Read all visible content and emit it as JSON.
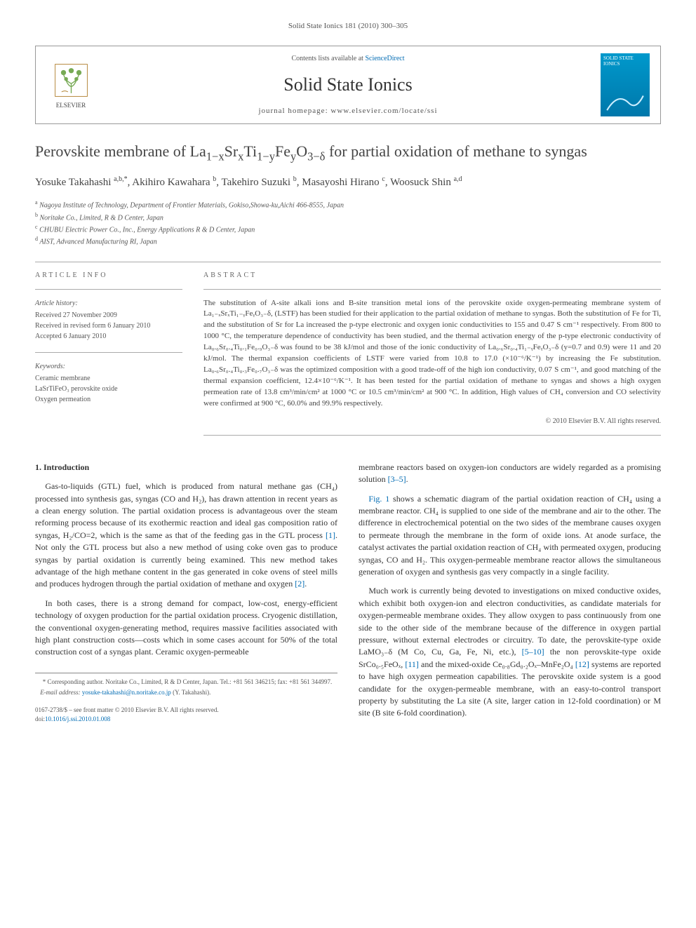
{
  "header": {
    "running": "Solid State Ionics 181 (2010) 300–305"
  },
  "contentsBox": {
    "availText": "Contents lists available at ",
    "availLink": "ScienceDirect",
    "journalName": "Solid State Ionics",
    "homepagePrefix": "journal homepage: ",
    "homepageUrl": "www.elsevier.com/locate/ssi",
    "elsevierLabel": "ELSEVIER",
    "coverTitle": "SOLID STATE IONICS"
  },
  "title": {
    "prefix": "Perovskite membrane of La",
    "sub1": "1−x",
    "mid1": "Sr",
    "sub2": "x",
    "mid2": "Ti",
    "sub3": "1−y",
    "mid3": "Fe",
    "sub4": "y",
    "mid4": "O",
    "sub5": "3−δ",
    "suffix": " for partial oxidation of methane to syngas"
  },
  "authors": [
    {
      "name": "Yosuke Takahashi",
      "sup": "a,b,*"
    },
    {
      "name": "Akihiro Kawahara",
      "sup": "b"
    },
    {
      "name": "Takehiro Suzuki",
      "sup": "b"
    },
    {
      "name": "Masayoshi Hirano",
      "sup": "c"
    },
    {
      "name": "Woosuck Shin",
      "sup": "a,d"
    }
  ],
  "affiliations": [
    {
      "sup": "a",
      "text": "Nagoya Institute of Technology, Department of Frontier Materials, Gokiso,Showa-ku,Aichi 466-8555, Japan"
    },
    {
      "sup": "b",
      "text": "Noritake Co., Limited, R & D Center, Japan"
    },
    {
      "sup": "c",
      "text": "CHUBU Electric Power Co., Inc., Energy Applications R & D Center, Japan"
    },
    {
      "sup": "d",
      "text": "AIST, Advanced Manufacturing RI, Japan"
    }
  ],
  "articleInfo": {
    "heading": "ARTICLE INFO",
    "historyLabel": "Article history:",
    "received": "Received 27 November 2009",
    "revised": "Received in revised form 6 January 2010",
    "accepted": "Accepted 6 January 2010",
    "keywordsLabel": "Keywords:",
    "keywords": [
      "Ceramic membrane",
      "LaSrTiFeO₃ perovskite oxide",
      "Oxygen permeation"
    ]
  },
  "abstract": {
    "heading": "ABSTRACT",
    "text": "The substitution of A-site alkali ions and B-site transition metal ions of the perovskite oxide oxygen-permeating membrane system of La₁₋ₓSrₓTi₁₋ᵧFeᵧO₃₋δ, (LSTF) has been studied for their application to the partial oxidation of methane to syngas. Both the substitution of Fe for Ti, and the substitution of Sr for La increased the p-type electronic and oxygen ionic conductivities to 155 and 0.47 S cm⁻¹ respectively. From 800 to 1000 °C, the temperature dependence of conductivity has been studied, and the thermal activation energy of the p-type electronic conductivity of La₀.₆Sr₀.₄Ti₀.₁Fe₀.₉O₃₋δ was found to be 38 kJ/mol and those of the ionic conductivity of La₀.₆Sr₀.₄Ti₁₋ᵧFeᵧO₃₋δ (y=0.7 and 0.9) were 11 and 20 kJ/mol. The thermal expansion coefficients of LSTF were varied from 10.8 to 17.0 (×10⁻⁶/K⁻¹) by increasing the Fe substitution. La₀.₆Sr₀.₄Ti₀.₃Fe₀.₇O₃₋δ was the optimized composition with a good trade-off of the high ion conductivity, 0.07 S cm⁻¹, and good matching of the thermal expansion coefficient, 12.4×10⁻⁶/K⁻¹. It has been tested for the partial oxidation of methane to syngas and shows a high oxygen permeation rate of 13.8 cm³/min/cm² at 1000 °C or 10.5 cm³/min/cm² at 900 °C. In addition, High values of CH₄ conversion and CO selectivity were confirmed at 900 °C, 60.0% and 99.9% respectively.",
    "copyright": "© 2010 Elsevier B.V. All rights reserved."
  },
  "body": {
    "sectionHeading": "1. Introduction",
    "col1p1": "Gas-to-liquids (GTL) fuel, which is produced from natural methane gas (CH₄) processed into synthesis gas, syngas (CO and H₂), has drawn attention in recent years as a clean energy solution. The partial oxidation process is advantageous over the steam reforming process because of its exothermic reaction and ideal gas composition ratio of syngas, H₂/CO=2, which is the same as that of the feeding gas in the GTL process ",
    "ref1": "[1]",
    "col1p1b": ". Not only the GTL process but also a new method of using coke oven gas to produce syngas by partial oxidation is currently being examined. This new method takes advantage of the high methane content in the gas generated in coke ovens of steel mills and produces hydrogen through the partial oxidation of methane and oxygen ",
    "ref2": "[2]",
    "col1p2": "In both cases, there is a strong demand for compact, low-cost, energy-efficient technology of oxygen production for the partial oxidation process. Cryogenic distillation, the conventional oxygen-generating method, requires massive facilities associated with high plant construction costs—costs which in some cases account for 50% of the total construction cost of a syngas plant. Ceramic oxygen-permeable",
    "col2p1a": "membrane reactors based on oxygen-ion conductors are widely regarded as a promising solution ",
    "ref35": "[3–5]",
    "col2p2a": "",
    "fig1link": "Fig. 1",
    "col2p2b": " shows a schematic diagram of the partial oxidation reaction of CH₄ using a membrane reactor. CH₄ is supplied to one side of the membrane and air to the other. The difference in electrochemical potential on the two sides of the membrane causes oxygen to permeate through the membrane in the form of oxide ions. At anode surface, the catalyst activates the partial oxidation reaction of CH₄ with permeated oxygen, producing syngas, CO and H₂. This oxygen-permeable membrane reactor allows the simultaneous generation of oxygen and synthesis gas very compactly in a single facility.",
    "col2p3a": "Much work is currently being devoted to investigations on mixed conductive oxides, which exhibit both oxygen-ion and electron conductivities, as candidate materials for oxygen-permeable membrane oxides. They allow oxygen to pass continuously from one side to the other side of the membrane because of the difference in oxygen partial pressure, without external electrodes or circuitry. To date, the perovskite-type oxide LaMO₃₋δ (M Co, Cu, Ga, Fe, Ni, etc.), ",
    "ref510": "[5–10]",
    "col2p3b": " the non perovskite-type oxide SrCo₀.₅FeOₓ, ",
    "ref11": "[11]",
    "col2p3c": " and the mixed-oxide Ce₀.₈Gd₀.₂Oₓ–MnFe₂O₄ ",
    "ref12": "[12]",
    "col2p3d": " systems are reported to have high oxygen permeation capabilities. The perovskite oxide system is a good candidate for the oxygen-permeable membrane, with an easy-to-control transport property by substituting the La site (A site, larger cation in 12-fold coordination) or M site (B site 6-fold coordination)."
  },
  "footnote": {
    "corr": "* Corresponding author. Noritake Co., Limited, R & D Center, Japan. Tel.: +81 561 346215; fax: +81 561 344997.",
    "emailLabel": "E-mail address: ",
    "email": "yosuke-takahashi@n.noritake.co.jp",
    "emailSuffix": " (Y. Takahashi)."
  },
  "doi": {
    "line1": "0167-2738/$ – see front matter © 2010 Elsevier B.V. All rights reserved.",
    "doiPrefix": "doi:",
    "doiLink": "10.1016/j.ssi.2010.01.008"
  },
  "colors": {
    "link": "#006bb3",
    "border": "#999",
    "text": "#333",
    "muted": "#555"
  }
}
